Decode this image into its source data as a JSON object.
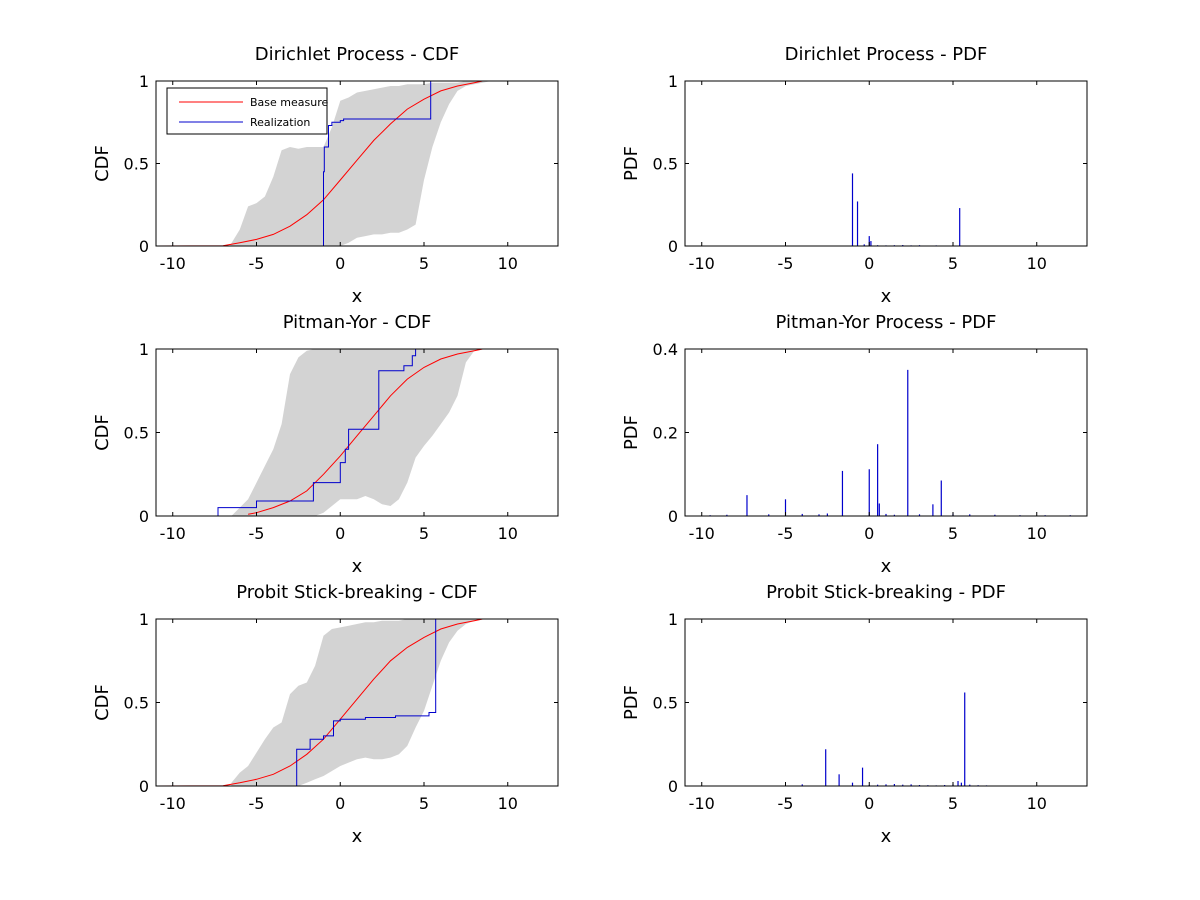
{
  "colors": {
    "base_measure": "#ff0000",
    "realization": "#0000cc",
    "band": "#d3d3d3",
    "axes": "#000000"
  },
  "legend": {
    "items": [
      {
        "label": "Base measure",
        "color": "#ff0000"
      },
      {
        "label": "Realization",
        "color": "#0000cc"
      }
    ],
    "placement": "top-left",
    "shown_in": "first-panel"
  },
  "chart_data": [
    {
      "type": "line",
      "title": "Dirichlet Process - CDF",
      "xlabel": "x",
      "ylabel": "CDF",
      "xlim": [
        -11,
        13
      ],
      "ylim": [
        0,
        1
      ],
      "xticks": [
        "-10",
        "-5",
        "0",
        "5",
        "10"
      ],
      "yticks": [
        "0",
        "0.5",
        "1"
      ],
      "grid": false,
      "legend": true,
      "band": {
        "x": [
          -6.6,
          -6,
          -5.5,
          -5.0,
          -4.5,
          -4,
          -3.5,
          -3,
          -2.5,
          -2,
          -1.5,
          -1,
          -0.5,
          0,
          0.5,
          1,
          1.5,
          2,
          2.5,
          3,
          3.5,
          4,
          4.5,
          5,
          5.5,
          6,
          6.5,
          7,
          7.5,
          8,
          8.5,
          9,
          9.5
        ],
        "lower": [
          0,
          0,
          0,
          0,
          0,
          0,
          0,
          0,
          0,
          0,
          0,
          0,
          0,
          0,
          0.02,
          0.05,
          0.06,
          0.07,
          0.07,
          0.08,
          0.08,
          0.1,
          0.13,
          0.4,
          0.6,
          0.75,
          0.86,
          0.94,
          0.97,
          0.98,
          0.99,
          1,
          1
        ],
        "upper": [
          0,
          0.1,
          0.24,
          0.26,
          0.3,
          0.42,
          0.58,
          0.6,
          0.59,
          0.6,
          0.6,
          0.6,
          0.72,
          0.88,
          0.9,
          0.93,
          0.94,
          0.95,
          0.96,
          0.97,
          0.97,
          0.98,
          0.98,
          0.98,
          0.99,
          0.99,
          0.99,
          0.99,
          1,
          1,
          1,
          1,
          1
        ]
      },
      "series": [
        {
          "name": "Base measure",
          "step": false,
          "x": [
            -11,
            -7,
            -6,
            -5,
            -4,
            -3,
            -2,
            -1,
            0,
            1,
            2,
            3,
            4,
            5,
            6,
            7,
            8,
            8.5
          ],
          "y": [
            0,
            0.002,
            0.02,
            0.04,
            0.07,
            0.12,
            0.19,
            0.28,
            0.4,
            0.52,
            0.64,
            0.74,
            0.83,
            0.89,
            0.94,
            0.97,
            0.99,
            1
          ]
        },
        {
          "name": "Realization",
          "step": true,
          "x": [
            -6.4,
            -1.0,
            -0.95,
            -0.7,
            -0.5,
            0.0,
            0.2,
            5.4,
            5.6
          ],
          "y": [
            0,
            0.45,
            0.6,
            0.73,
            0.75,
            0.76,
            0.77,
            1,
            1
          ]
        }
      ]
    },
    {
      "type": "bar",
      "title": "Dirichlet Process - PDF",
      "xlabel": "x",
      "ylabel": "PDF",
      "xlim": [
        -11,
        13
      ],
      "ylim": [
        0,
        1
      ],
      "xticks": [
        "-10",
        "-5",
        "0",
        "5",
        "10"
      ],
      "yticks": [
        "0",
        "0.5",
        "1"
      ],
      "grid": false,
      "x": [
        -1.0,
        -0.7,
        0.0,
        0.1,
        5.4,
        -2.0,
        -0.3,
        0.5,
        1.0,
        1.5,
        2.0,
        2.5,
        3.0,
        3.5,
        4.0,
        4.5,
        6.0,
        6.5
      ],
      "values": [
        0.44,
        0.27,
        0.06,
        0.03,
        0.23,
        0.003,
        0.01,
        0.005,
        0.004,
        0.005,
        0.006,
        0.004,
        0.005,
        0.003,
        0.004,
        0.003,
        0.003,
        0.002
      ]
    },
    {
      "type": "line",
      "title": "Pitman-Yor - CDF",
      "xlabel": "x",
      "ylabel": "CDF",
      "xlim": [
        -11,
        13
      ],
      "ylim": [
        0,
        1
      ],
      "xticks": [
        "-10",
        "-5",
        "0",
        "5",
        "10"
      ],
      "yticks": [
        "0",
        "0.5",
        "1"
      ],
      "grid": false,
      "legend": false,
      "band": {
        "x": [
          -6.5,
          -5.5,
          -5,
          -4.5,
          -4,
          -3.5,
          -3,
          -2.5,
          -2,
          -1.5,
          -1,
          -0.5,
          0,
          0.5,
          1,
          1.5,
          2,
          2.5,
          3,
          3.5,
          4,
          4.5,
          5,
          5.5,
          6,
          6.5,
          7,
          7.5,
          8,
          8.5
        ],
        "lower": [
          0,
          0,
          0,
          0,
          0,
          0,
          0,
          0,
          0,
          0,
          0.02,
          0.06,
          0.1,
          0.1,
          0.1,
          0.12,
          0.1,
          0.07,
          0.06,
          0.1,
          0.2,
          0.35,
          0.42,
          0.48,
          0.55,
          0.62,
          0.72,
          0.92,
          0.99,
          1
        ],
        "upper": [
          0,
          0.1,
          0.2,
          0.3,
          0.4,
          0.55,
          0.85,
          0.95,
          0.99,
          1,
          1,
          1,
          1,
          1,
          1,
          1,
          1,
          1,
          1,
          1,
          1,
          1,
          1,
          1,
          1,
          1,
          1,
          1,
          1,
          1
        ]
      },
      "series": [
        {
          "name": "Base measure",
          "step": false,
          "x": [
            -5.5,
            -5,
            -4,
            -3,
            -2,
            -1,
            0,
            1,
            2,
            3,
            4,
            5,
            6,
            7,
            8,
            8.5
          ],
          "y": [
            0.01,
            0.02,
            0.05,
            0.09,
            0.15,
            0.25,
            0.36,
            0.48,
            0.6,
            0.72,
            0.82,
            0.89,
            0.94,
            0.97,
            0.99,
            1
          ]
        },
        {
          "name": "Realization",
          "step": true,
          "x": [
            -11,
            -7.3,
            -5.0,
            -1.6,
            0.0,
            0.3,
            0.5,
            2.3,
            3.8,
            4.3,
            4.5
          ],
          "y": [
            0,
            0.05,
            0.09,
            0.2,
            0.32,
            0.4,
            0.52,
            0.87,
            0.9,
            0.96,
            1
          ]
        }
      ]
    },
    {
      "type": "bar",
      "title": "Pitman-Yor Process - PDF",
      "xlabel": "x",
      "ylabel": "PDF",
      "xlim": [
        -11,
        13
      ],
      "ylim": [
        0,
        0.4
      ],
      "xticks": [
        "-10",
        "-5",
        "0",
        "5",
        "10"
      ],
      "yticks": [
        "0",
        "0.2",
        "0.4"
      ],
      "grid": false,
      "x": [
        -7.3,
        -5.0,
        -1.6,
        0.0,
        0.5,
        0.6,
        2.3,
        3.8,
        4.3,
        -9.5,
        -8.5,
        -6.0,
        -4.0,
        -3.0,
        -2.5,
        1.0,
        1.5,
        3.0,
        5.0,
        6.0,
        7.5,
        9.0,
        10.5,
        12.0
      ],
      "values": [
        0.05,
        0.04,
        0.108,
        0.112,
        0.172,
        0.03,
        0.35,
        0.028,
        0.085,
        0.002,
        0.003,
        0.004,
        0.005,
        0.004,
        0.006,
        0.005,
        0.003,
        0.004,
        0.006,
        0.004,
        0.003,
        0.002,
        0.002,
        0.002
      ]
    },
    {
      "type": "line",
      "title": "Probit Stick-breaking - CDF",
      "xlabel": "x",
      "ylabel": "CDF",
      "xlim": [
        -11,
        13
      ],
      "ylim": [
        0,
        1
      ],
      "xticks": [
        "-10",
        "-5",
        "0",
        "5",
        "10"
      ],
      "yticks": [
        "0",
        "0.5",
        "1"
      ],
      "grid": false,
      "legend": false,
      "band": {
        "x": [
          -6.5,
          -6,
          -5.5,
          -5,
          -4.5,
          -4,
          -3.5,
          -3,
          -2.5,
          -2,
          -1.5,
          -1,
          -0.5,
          0,
          0.5,
          1,
          1.5,
          2,
          2.5,
          3,
          3.5,
          4,
          4.5,
          5,
          5.5,
          6,
          6.5,
          7,
          7.5,
          8,
          8.5
        ],
        "lower": [
          0,
          0,
          0,
          0,
          0,
          0,
          0,
          0,
          0,
          0.02,
          0.04,
          0.06,
          0.09,
          0.12,
          0.14,
          0.16,
          0.17,
          0.16,
          0.16,
          0.17,
          0.19,
          0.24,
          0.35,
          0.45,
          0.6,
          0.75,
          0.86,
          0.93,
          0.97,
          0.99,
          1
        ],
        "upper": [
          0.02,
          0.08,
          0.12,
          0.2,
          0.28,
          0.35,
          0.38,
          0.55,
          0.6,
          0.62,
          0.72,
          0.9,
          0.94,
          0.95,
          0.96,
          0.97,
          0.98,
          0.98,
          0.99,
          0.99,
          0.99,
          1,
          1,
          1,
          1,
          1,
          1,
          1,
          1,
          1,
          1
        ]
      },
      "series": [
        {
          "name": "Base measure",
          "step": false,
          "x": [
            -11,
            -7,
            -6,
            -5,
            -4,
            -3,
            -2,
            -1,
            0,
            1,
            2,
            3,
            4,
            5,
            6,
            7,
            8,
            8.5
          ],
          "y": [
            0,
            0.002,
            0.02,
            0.04,
            0.07,
            0.12,
            0.19,
            0.28,
            0.4,
            0.52,
            0.64,
            0.75,
            0.83,
            0.89,
            0.94,
            0.97,
            0.99,
            1
          ]
        },
        {
          "name": "Realization",
          "step": true,
          "x": [
            -11,
            -2.6,
            -1.8,
            -1.0,
            -0.4,
            0.0,
            1.5,
            3.3,
            5.3,
            5.7,
            5.9
          ],
          "y": [
            0,
            0.22,
            0.28,
            0.3,
            0.39,
            0.4,
            0.41,
            0.42,
            0.44,
            1,
            1
          ]
        }
      ]
    },
    {
      "type": "bar",
      "title": "Probit Stick-breaking - PDF",
      "xlabel": "x",
      "ylabel": "PDF",
      "xlim": [
        -11,
        13
      ],
      "ylim": [
        0,
        1
      ],
      "xticks": [
        "-10",
        "-5",
        "0",
        "5",
        "10"
      ],
      "yticks": [
        "0",
        "0.5",
        "1"
      ],
      "grid": false,
      "x": [
        -2.6,
        -1.8,
        -1.0,
        -0.4,
        5.3,
        5.7,
        -4.0,
        0.0,
        0.5,
        1.0,
        1.5,
        2.0,
        2.5,
        3.0,
        3.5,
        4.0,
        4.5,
        5.0,
        5.5,
        6.0,
        6.5,
        7.0
      ],
      "values": [
        0.22,
        0.07,
        0.02,
        0.11,
        0.03,
        0.56,
        0.01,
        0.006,
        0.008,
        0.01,
        0.012,
        0.008,
        0.01,
        0.006,
        0.005,
        0.004,
        0.006,
        0.01,
        0.02,
        0.008,
        0.005,
        0.004
      ]
    }
  ]
}
